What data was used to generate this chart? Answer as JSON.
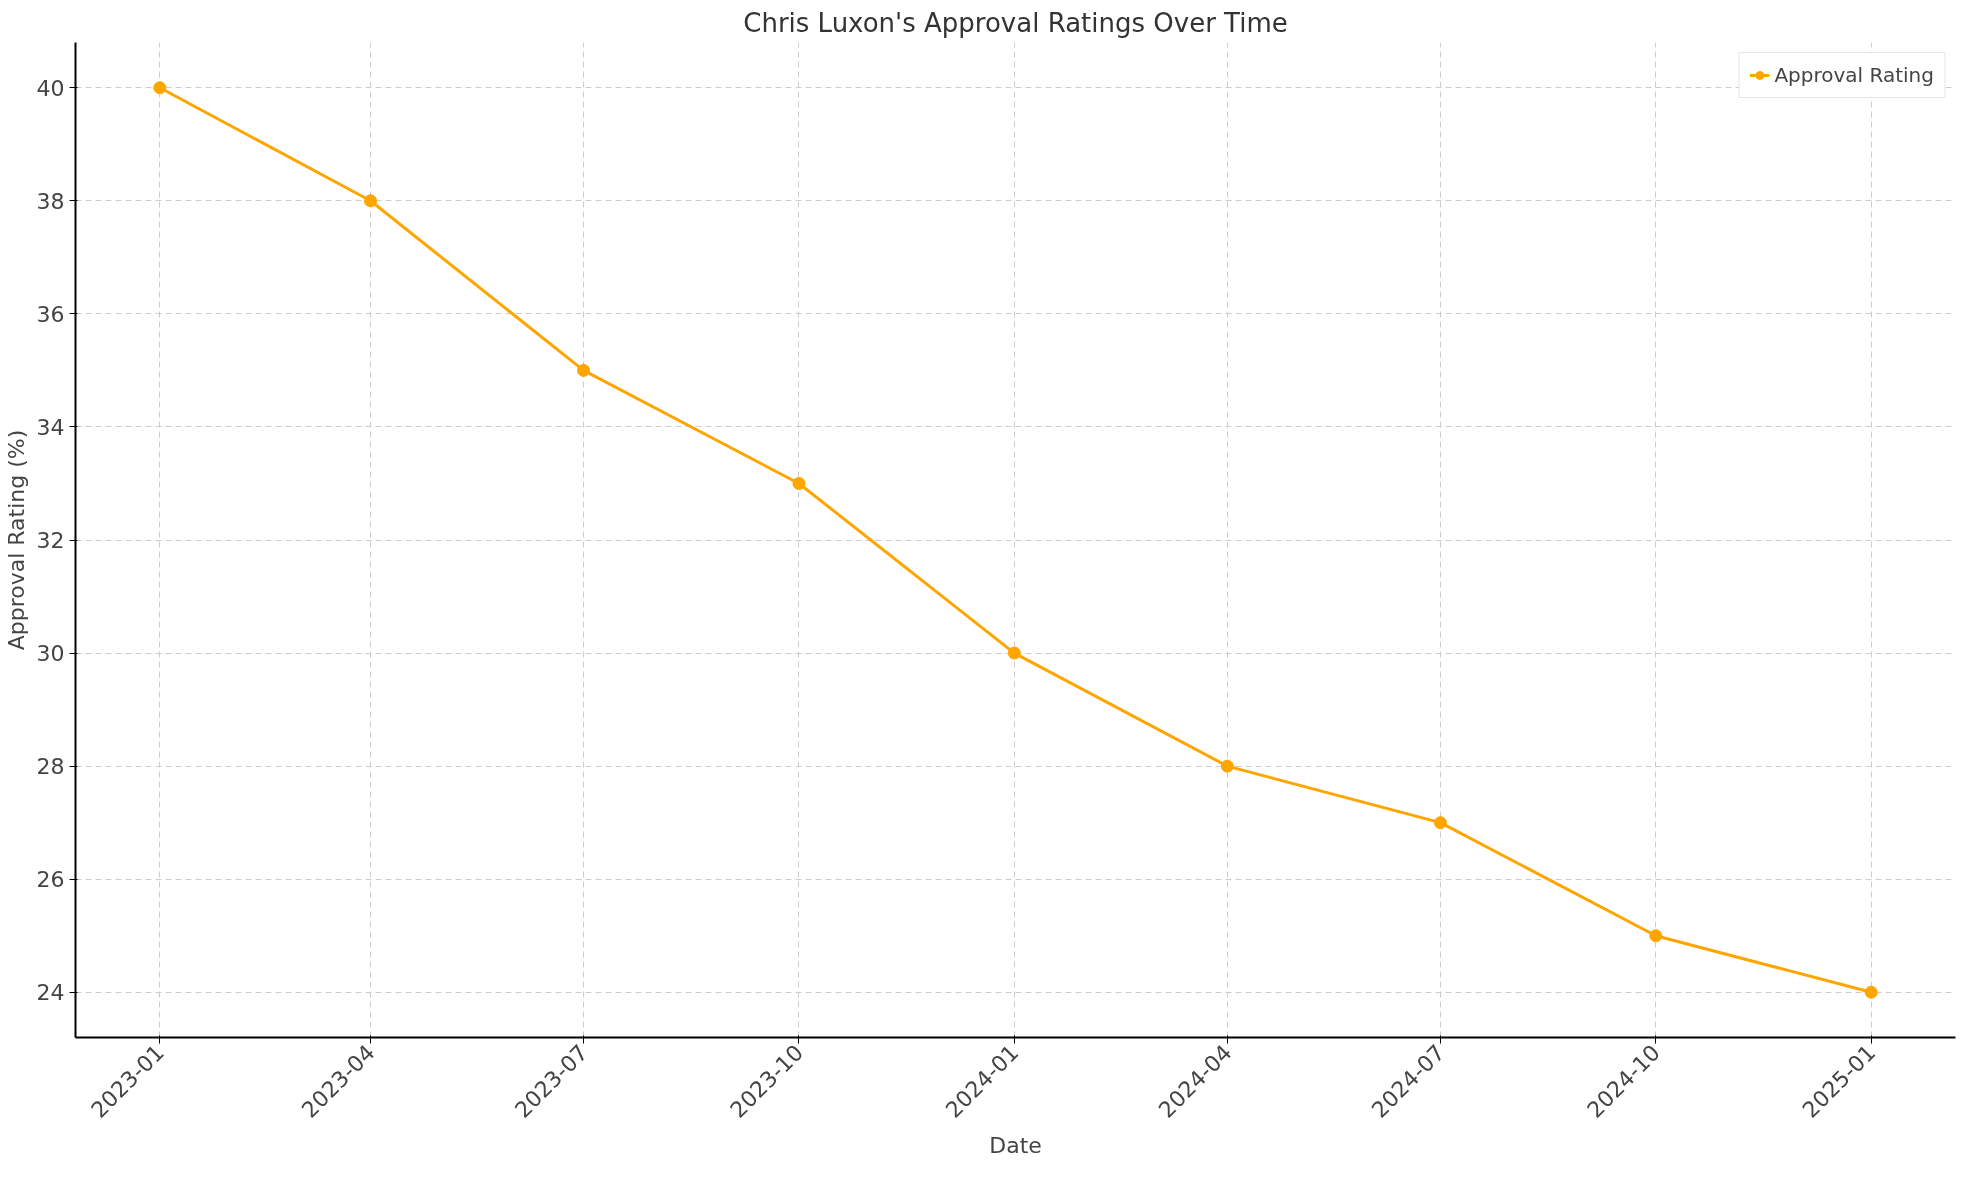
{
  "chart_data": {
    "type": "line",
    "title": "Chris Luxon's Approval Ratings Over Time",
    "xlabel": "Date",
    "ylabel": "Approval Rating (%)",
    "x": [
      "2023-01",
      "2023-04",
      "2023-07",
      "2023-10",
      "2024-01",
      "2024-04",
      "2024-07",
      "2024-10",
      "2025-01"
    ],
    "series": [
      {
        "name": "Approval Rating",
        "color": "#ffa500",
        "values": [
          40,
          38,
          35,
          33,
          30,
          28,
          27,
          25,
          24
        ]
      }
    ],
    "xlim": [
      "2022-11-26",
      "2025-02-06"
    ],
    "xticks": [
      "2023-01",
      "2023-04",
      "2023-07",
      "2023-10",
      "2024-01",
      "2024-04",
      "2024-07",
      "2024-10",
      "2025-01"
    ],
    "ylim": [
      23.2,
      40.8
    ],
    "yticks": [
      24,
      26,
      28,
      30,
      32,
      34,
      36,
      38,
      40
    ],
    "grid": true,
    "legend": "top right",
    "marker": "circle",
    "line_style": "solid"
  }
}
